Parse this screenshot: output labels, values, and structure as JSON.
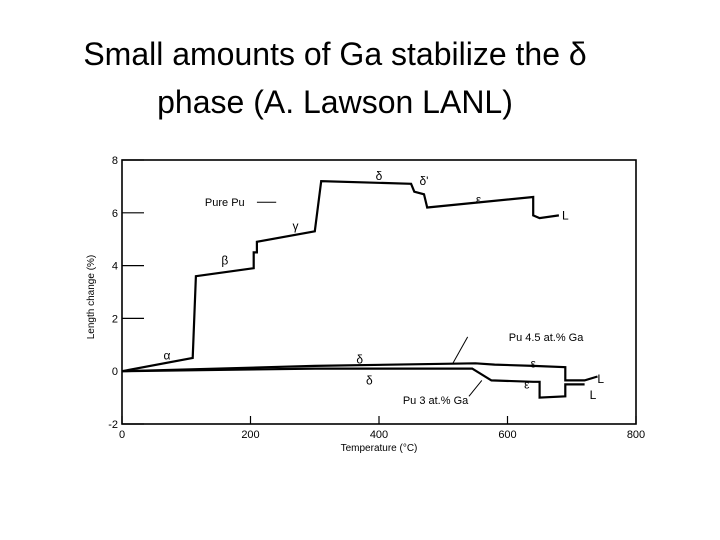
{
  "slide": {
    "title_line1": "Small amounts of Ga stabilize the δ",
    "title_line2": "phase (A. Lawson LANL)"
  },
  "chart_data": {
    "type": "line",
    "xlabel": "Temperature (°C)",
    "ylabel": "Length change (%)",
    "xlim": [
      0,
      800
    ],
    "ylim": [
      -2,
      8
    ],
    "xticks": [
      0,
      200,
      400,
      600,
      800
    ],
    "yticks": [
      -2,
      0,
      2,
      4,
      6,
      8
    ],
    "grid": false,
    "series": [
      {
        "name": "Pure Pu",
        "points": [
          [
            0,
            0
          ],
          [
            110,
            0.5
          ],
          [
            115,
            3.6
          ],
          [
            205,
            3.9
          ],
          [
            205,
            4.5
          ],
          [
            210,
            4.5
          ],
          [
            210,
            4.9
          ],
          [
            300,
            5.3
          ],
          [
            310,
            7.2
          ],
          [
            450,
            7.1
          ],
          [
            455,
            6.8
          ],
          [
            470,
            6.7
          ],
          [
            475,
            6.2
          ],
          [
            640,
            6.6
          ],
          [
            640,
            5.9
          ],
          [
            650,
            5.8
          ],
          [
            680,
            5.9
          ]
        ]
      },
      {
        "name": "Pu 4.5 at.% Ga",
        "points": [
          [
            0,
            0
          ],
          [
            300,
            0.2
          ],
          [
            550,
            0.3
          ],
          [
            580,
            0.25
          ],
          [
            640,
            0.2
          ],
          [
            690,
            0.15
          ],
          [
            690,
            -0.35
          ],
          [
            720,
            -0.35
          ],
          [
            740,
            -0.2
          ]
        ]
      },
      {
        "name": "Pu 3 at.% Ga",
        "points": [
          [
            0,
            0
          ],
          [
            300,
            0.1
          ],
          [
            545,
            0.1
          ],
          [
            575,
            -0.35
          ],
          [
            640,
            -0.4
          ],
          [
            650,
            -0.4
          ],
          [
            650,
            -1.0
          ],
          [
            690,
            -0.95
          ],
          [
            690,
            -0.5
          ],
          [
            720,
            -0.5
          ]
        ]
      }
    ],
    "annotations": [
      {
        "text": "α",
        "x": 70,
        "y": 0.6
      },
      {
        "text": "β",
        "x": 160,
        "y": 4.2
      },
      {
        "text": "γ",
        "x": 270,
        "y": 5.5
      },
      {
        "text": "δ",
        "x": 400,
        "y": 7.4
      },
      {
        "text": "δ'",
        "x": 470,
        "y": 7.2
      },
      {
        "text": "ε",
        "x": 555,
        "y": 6.5
      },
      {
        "text": "L",
        "x": 690,
        "y": 5.9
      },
      {
        "text": "δ",
        "x": 370,
        "y": 0.45
      },
      {
        "text": "δ",
        "x": 385,
        "y": -0.35
      },
      {
        "text": "ε",
        "x": 640,
        "y": 0.3
      },
      {
        "text": "ε",
        "x": 630,
        "y": -0.5
      },
      {
        "text": "L",
        "x": 745,
        "y": -0.3
      },
      {
        "text": "L",
        "x": 733,
        "y": -0.9
      },
      {
        "text": "Pure Pu",
        "x": 160,
        "y": 6.4
      },
      {
        "text": "Pu 4.5 at.% Ga",
        "x": 660,
        "y": 1.3
      },
      {
        "text": "Pu 3 at.% Ga",
        "x": 488,
        "y": -1.1
      }
    ]
  }
}
